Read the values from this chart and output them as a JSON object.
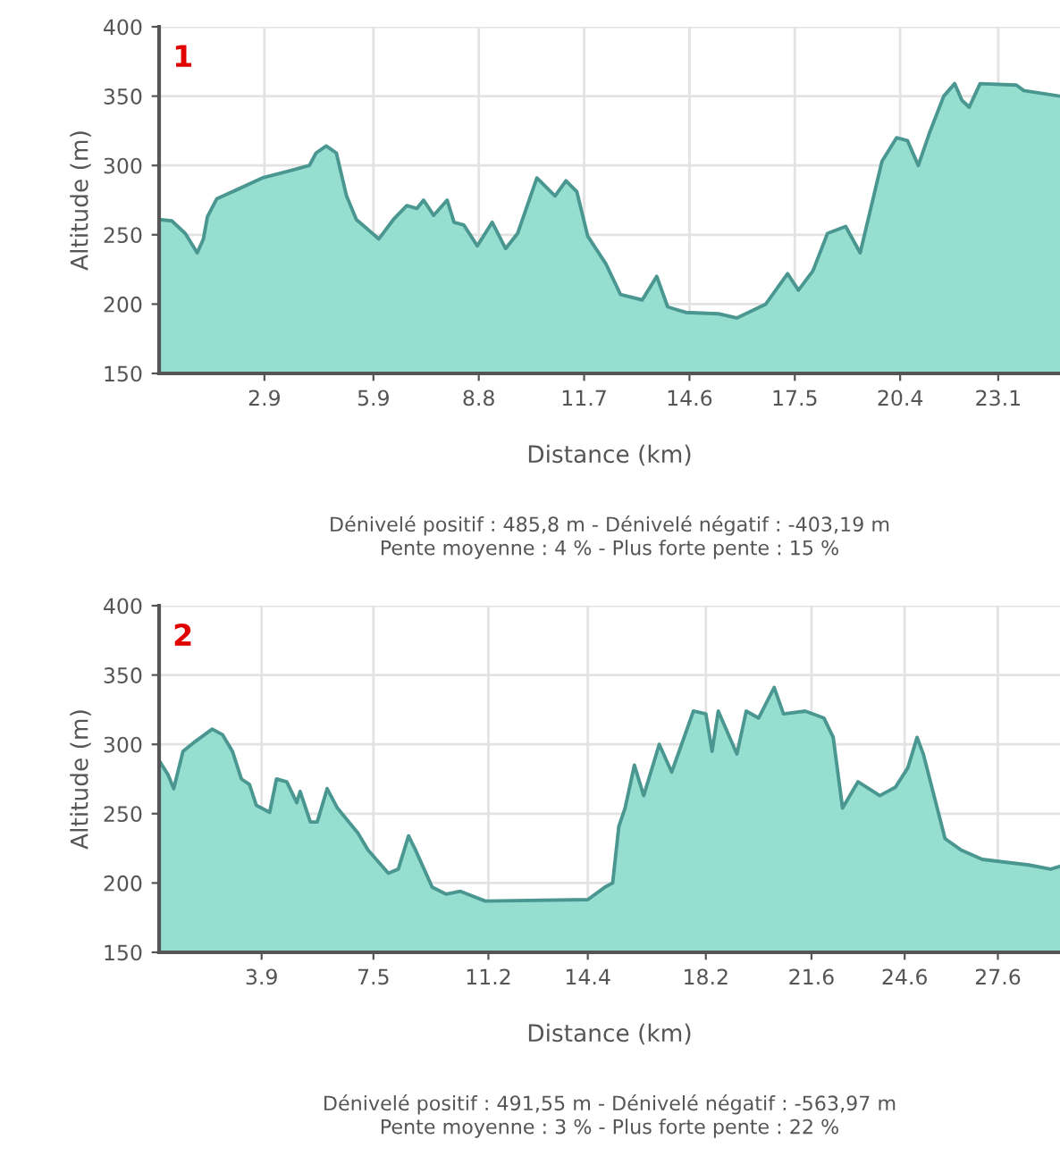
{
  "chart_data": [
    {
      "type": "area",
      "xlabel": "Distance (km)",
      "ylabel": "Altitude (m)",
      "xlim": [
        0,
        24.8
      ],
      "ylim": [
        150,
        400
      ],
      "xticks": [
        2.9,
        5.9,
        8.8,
        11.7,
        14.6,
        17.5,
        20.4,
        23.1
      ],
      "yticks": [
        150,
        200,
        250,
        300,
        350,
        400
      ],
      "grid": true,
      "legend": false,
      "annotations": [
        "1",
        "Dénivelé positif : 485,8 m - Dénivelé négatif : -403,19 m",
        "Pente moyenne : 4 % - Plus forte pente : 15 %"
      ],
      "series": [
        {
          "color": "#8fdccd",
          "x": [
            0,
            0.35,
            0.72,
            1.05,
            1.22,
            1.33,
            1.59,
            2.1,
            2.84,
            3.58,
            4.14,
            4.32,
            4.6,
            4.88,
            5.16,
            5.43,
            6.05,
            6.45,
            6.82,
            7.1,
            7.28,
            7.56,
            7.93,
            8.12,
            8.39,
            8.76,
            9.17,
            9.54,
            9.87,
            10.4,
            10.9,
            11.2,
            11.5,
            11.8,
            12.3,
            12.7,
            13.3,
            13.7,
            14.0,
            14.5,
            15.4,
            15.9,
            16.7,
            17.3,
            17.6,
            18.0,
            18.4,
            18.9,
            19.3,
            19.9,
            20.3,
            20.6,
            20.9,
            21.2,
            21.6,
            21.9,
            22.1,
            22.3,
            22.6,
            23.6,
            23.8,
            24.8
          ],
          "values": [
            261,
            260,
            251,
            237,
            247,
            263,
            276,
            282,
            291,
            296,
            300,
            309,
            314,
            309,
            278,
            261,
            247,
            261,
            271,
            269,
            275,
            264,
            275,
            259,
            257,
            242,
            259,
            240,
            251,
            291,
            278,
            289,
            281,
            249,
            229,
            207,
            203,
            220,
            198,
            194,
            193,
            190,
            200,
            222,
            210,
            224,
            251,
            256,
            237,
            303,
            320,
            318,
            300,
            323,
            350,
            359,
            347,
            342,
            359,
            358,
            354,
            350
          ]
        }
      ]
    },
    {
      "type": "area",
      "xlabel": "Distance (km)",
      "ylabel": "Altitude (m)",
      "xlim": [
        0.6,
        29.6
      ],
      "ylim": [
        150,
        400
      ],
      "xticks": [
        3.9,
        7.5,
        11.2,
        14.4,
        18.2,
        21.6,
        24.6,
        27.6
      ],
      "yticks": [
        150,
        200,
        250,
        300,
        350,
        400
      ],
      "grid": true,
      "legend": false,
      "annotations": [
        "2",
        "Dénivelé positif : 491,55 m - Dénivelé négatif : -563,97 m",
        "Pente moyenne : 3 % - Plus forte pente : 22 %"
      ],
      "series": [
        {
          "color": "#8fdccd",
          "x": [
            0.61,
            0.89,
            1.07,
            1.37,
            1.76,
            2.31,
            2.64,
            2.96,
            3.25,
            3.51,
            3.73,
            4.16,
            4.38,
            4.71,
            5.03,
            5.14,
            5.47,
            5.69,
            6.01,
            6.34,
            7.0,
            7.32,
            7.98,
            8.3,
            8.63,
            8.85,
            9.39,
            9.83,
            10.3,
            11.1,
            14.4,
            14.95,
            15.2,
            15.4,
            15.6,
            15.9,
            16.2,
            16.7,
            17.1,
            17.5,
            17.8,
            18.2,
            18.4,
            18.6,
            19.2,
            19.5,
            19.9,
            20.4,
            20.7,
            21.4,
            22.0,
            22.3,
            22.6,
            23.1,
            23.8,
            24.3,
            24.7,
            25.0,
            25.2,
            25.9,
            26.4,
            27.1,
            28.6,
            29.3,
            29.6
          ],
          "values": [
            288,
            278,
            268,
            295,
            302,
            311,
            307,
            295,
            275,
            271,
            256,
            251,
            275,
            273,
            258,
            266,
            244,
            244,
            268,
            254,
            236,
            224,
            207,
            210,
            234,
            224,
            197,
            192,
            194,
            187,
            188,
            197,
            200,
            241,
            254,
            285,
            263,
            300,
            280,
            305,
            324,
            322,
            295,
            324,
            293,
            324,
            319,
            341,
            322,
            324,
            319,
            305,
            254,
            273,
            263,
            269,
            283,
            305,
            293,
            232,
            224,
            217,
            213,
            210,
            212
          ]
        }
      ]
    }
  ]
}
